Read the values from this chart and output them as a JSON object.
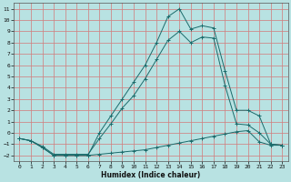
{
  "xlabel": "Humidex (Indice chaleur)",
  "bg_color": "#b8e2e2",
  "grid_color_major": "#d08080",
  "line_color": "#1a6b6b",
  "xlim": [
    -0.5,
    23.5
  ],
  "ylim": [
    -2.5,
    11.5
  ],
  "xticks": [
    0,
    1,
    2,
    3,
    4,
    5,
    6,
    7,
    8,
    9,
    10,
    11,
    12,
    13,
    14,
    15,
    16,
    17,
    18,
    19,
    20,
    21,
    22,
    23
  ],
  "yticks": [
    -2,
    -1,
    0,
    1,
    2,
    3,
    4,
    5,
    6,
    7,
    8,
    9,
    10,
    11
  ],
  "curve_bottom_x": [
    0,
    1,
    2,
    3,
    4,
    5,
    6,
    7,
    8,
    9,
    10,
    11,
    12,
    13,
    14,
    15,
    16,
    17,
    18,
    19,
    20,
    21,
    22,
    23
  ],
  "curve_bottom_y": [
    -0.5,
    -0.7,
    -1.3,
    -2.0,
    -2.0,
    -2.0,
    -2.0,
    -1.9,
    -1.8,
    -1.7,
    -1.6,
    -1.5,
    -1.3,
    -1.1,
    -0.9,
    -0.7,
    -0.5,
    -0.3,
    -0.1,
    0.1,
    0.2,
    -0.8,
    -1.1,
    -1.1
  ],
  "curve_top_x": [
    0,
    1,
    2,
    3,
    4,
    5,
    6,
    7,
    8,
    9,
    10,
    11,
    12,
    13,
    14,
    15,
    16,
    17,
    18,
    19,
    20,
    21,
    22,
    23
  ],
  "curve_top_y": [
    -0.5,
    -0.7,
    -1.3,
    -2.0,
    -2.0,
    -2.0,
    -2.0,
    0.0,
    1.5,
    3.0,
    4.5,
    6.0,
    8.0,
    10.3,
    11.0,
    9.2,
    9.5,
    9.3,
    5.5,
    2.0,
    2.0,
    1.5,
    -1.0,
    -1.1
  ],
  "curve_mid_x": [
    0,
    1,
    2,
    3,
    4,
    5,
    6,
    7,
    8,
    9,
    10,
    11,
    12,
    13,
    14,
    15,
    16,
    17,
    18,
    19,
    20,
    21,
    22,
    23
  ],
  "curve_mid_y": [
    -0.5,
    -0.7,
    -1.2,
    -1.9,
    -1.9,
    -1.9,
    -1.9,
    -0.5,
    0.8,
    2.2,
    3.3,
    4.8,
    6.5,
    8.2,
    9.0,
    8.0,
    8.5,
    8.4,
    4.2,
    0.8,
    0.7,
    0.0,
    -1.0,
    -1.1
  ]
}
